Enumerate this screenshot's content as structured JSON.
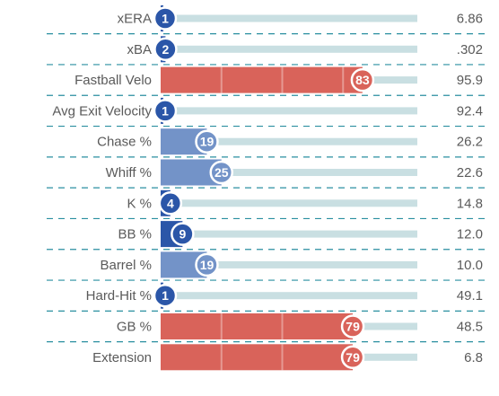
{
  "chart_data": {
    "type": "bar",
    "xlim": [
      0,
      100
    ],
    "colors": {
      "track": "#c9dfe2",
      "divider": "#2a8fa0",
      "rank_low": "#2b56a8",
      "rank_mid": "#7393c8",
      "rank_high": "#d9635a",
      "badge_border": "#ffffff"
    },
    "rows": [
      {
        "metric": "xERA",
        "percentile": 1,
        "value": "6.86"
      },
      {
        "metric": "xBA",
        "percentile": 2,
        "value": ".302"
      },
      {
        "metric": "Fastball Velo",
        "percentile": 83,
        "value": "95.9"
      },
      {
        "metric": "Avg Exit Velocity",
        "percentile": 1,
        "value": "92.4"
      },
      {
        "metric": "Chase %",
        "percentile": 19,
        "value": "26.2"
      },
      {
        "metric": "Whiff %",
        "percentile": 25,
        "value": "22.6"
      },
      {
        "metric": "K %",
        "percentile": 4,
        "value": "14.8"
      },
      {
        "metric": "BB %",
        "percentile": 9,
        "value": "12.0"
      },
      {
        "metric": "Barrel %",
        "percentile": 19,
        "value": "10.0"
      },
      {
        "metric": "Hard-Hit %",
        "percentile": 1,
        "value": "49.1"
      },
      {
        "metric": "GB %",
        "percentile": 79,
        "value": "48.5"
      },
      {
        "metric": "Extension",
        "percentile": 79,
        "value": "6.8"
      }
    ]
  }
}
